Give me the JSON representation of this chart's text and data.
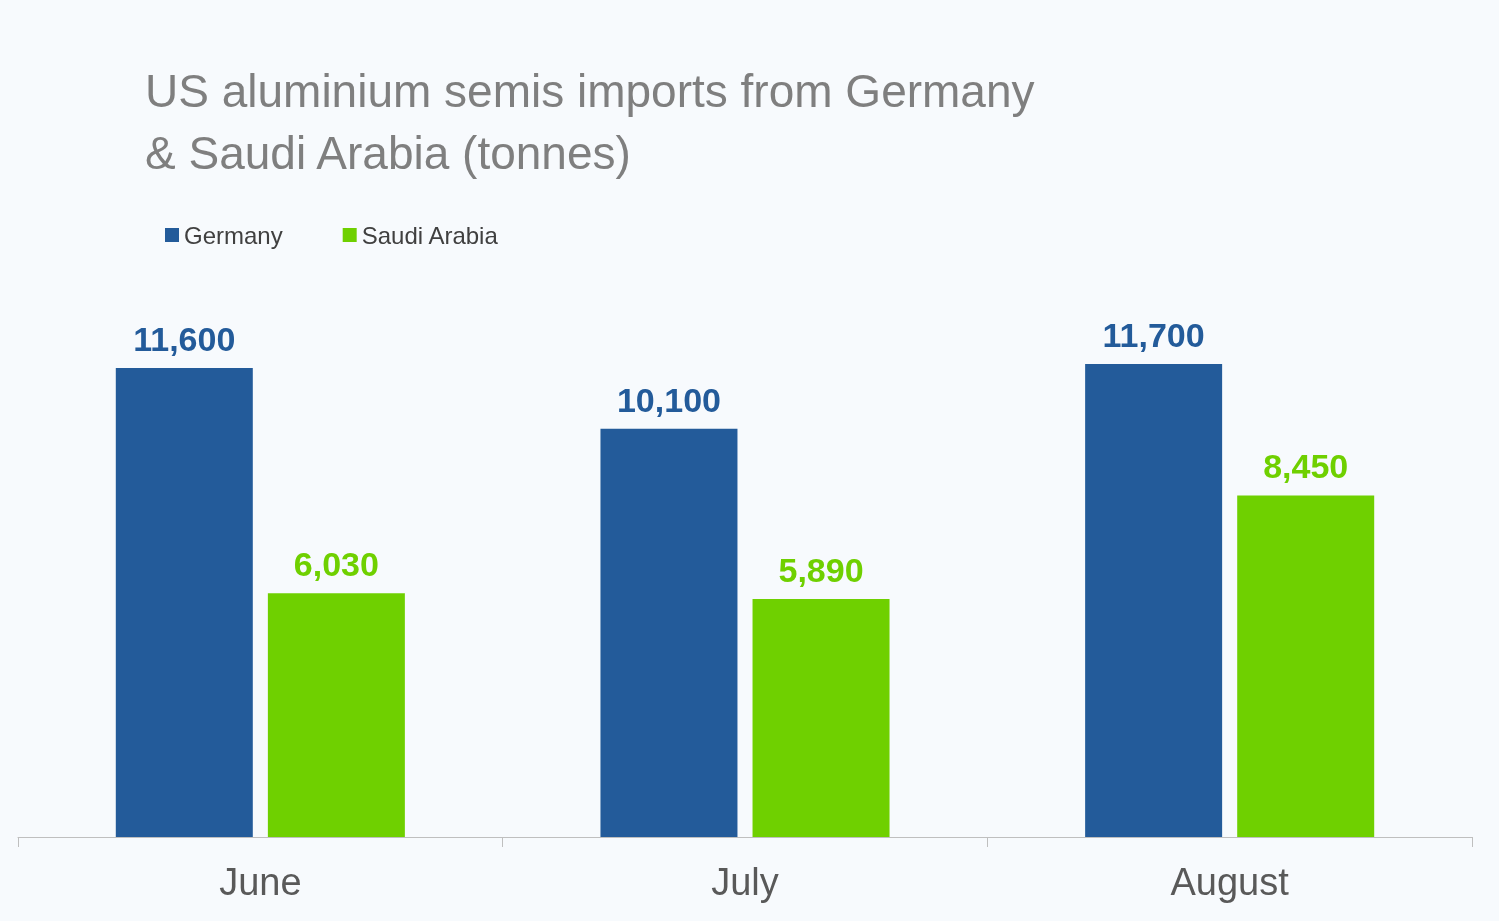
{
  "chart_data": {
    "type": "bar",
    "title": "US aluminium semis imports from Germany & Saudi Arabia (tonnes)",
    "categories": [
      "June",
      "July",
      "August"
    ],
    "series": [
      {
        "name": "Germany",
        "color": "#235b9a",
        "values": [
          11600,
          10100,
          11700
        ],
        "value_labels": [
          "11,600",
          "10,100",
          "11,700"
        ]
      },
      {
        "name": "Saudi Arabia",
        "color": "#6fd000",
        "values": [
          6030,
          5890,
          8450
        ],
        "value_labels": [
          "6,030",
          "5,890",
          "8,450"
        ]
      }
    ],
    "tick_labels": "x",
    "legend": "top left"
  }
}
